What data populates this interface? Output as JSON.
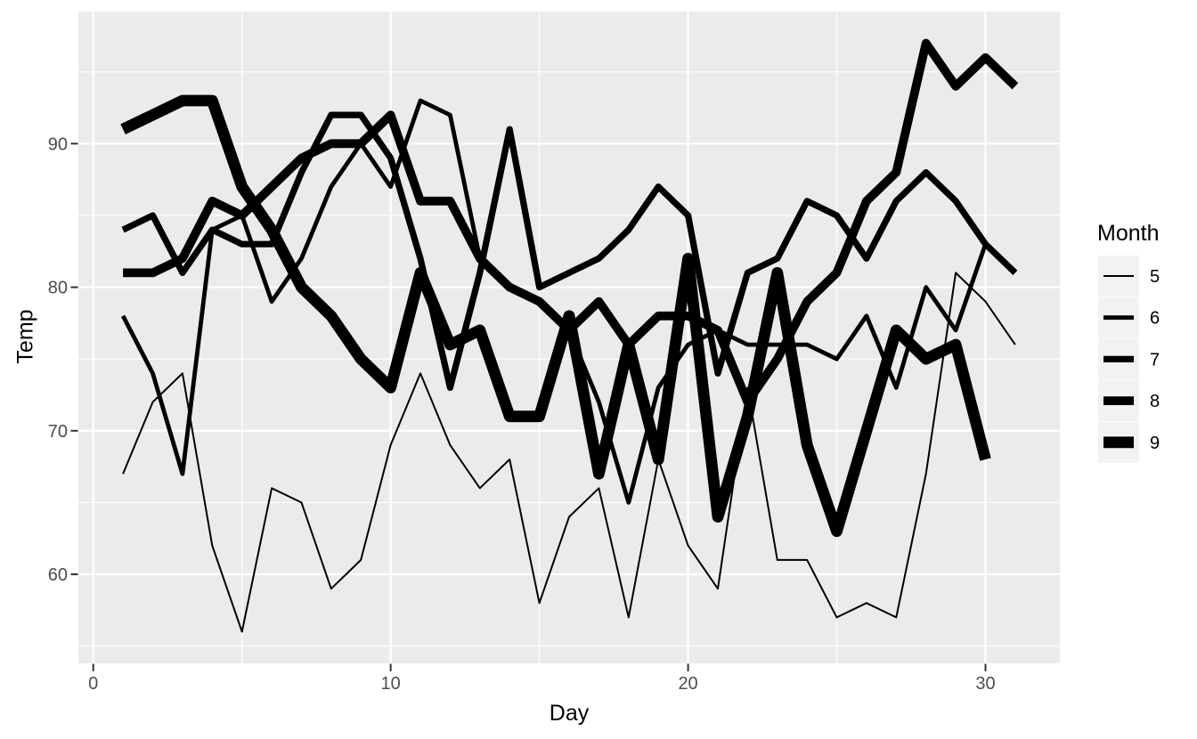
{
  "figure": {
    "background": "#FFFFFF",
    "panel_background": "#EBEBEB",
    "grid_major_color": "#FFFFFF",
    "grid_minor_color": "#FFFFFF",
    "series_line_color": "#000000",
    "tick_label_color": "#4D4D4D",
    "tick_mark_color": "#333333",
    "axis_title_color": "#000000",
    "legend_key_fill": "#F2F2F2",
    "legend_text_color": "#000000"
  },
  "chart_data": {
    "type": "line",
    "title": "",
    "xlabel": "Day",
    "ylabel": "Temp",
    "legend_title": "Month",
    "legend_position": "right",
    "grid": true,
    "x_description": "Day of month, consecutive integers starting at 1 for every series",
    "size_encoding": "line thickness increases with Month (5 thinnest to 9 thickest)",
    "xlim": [
      -0.5,
      32.5
    ],
    "ylim": [
      53.8,
      99.2
    ],
    "x_major_ticks": [
      0,
      10,
      20,
      30
    ],
    "x_minor_ticks": [
      5,
      15,
      25
    ],
    "y_major_ticks": [
      60,
      70,
      80,
      90
    ],
    "y_minor_ticks": [
      55,
      65,
      75,
      85,
      95
    ],
    "series": [
      {
        "name": "5",
        "line_width": 2,
        "values": [
          67,
          72,
          74,
          62,
          56,
          66,
          65,
          59,
          61,
          69,
          74,
          69,
          66,
          68,
          58,
          64,
          66,
          57,
          68,
          62,
          59,
          73,
          61,
          61,
          57,
          58,
          57,
          67,
          81,
          79,
          76
        ]
      },
      {
        "name": "6",
        "line_width": 4.8,
        "values": [
          78,
          74,
          67,
          84,
          85,
          79,
          82,
          87,
          90,
          87,
          93,
          92,
          82,
          80,
          79,
          77,
          72,
          65,
          73,
          76,
          77,
          76,
          76,
          76,
          75,
          78,
          73,
          80,
          77,
          83
        ]
      },
      {
        "name": "7",
        "line_width": 7.2,
        "values": [
          84,
          85,
          81,
          84,
          83,
          83,
          88,
          92,
          92,
          89,
          82,
          73,
          81,
          91,
          80,
          81,
          82,
          84,
          87,
          85,
          74,
          81,
          82,
          86,
          85,
          82,
          86,
          88,
          86,
          83,
          81
        ]
      },
      {
        "name": "8",
        "line_width": 9.8,
        "values": [
          81,
          81,
          82,
          86,
          85,
          87,
          89,
          90,
          90,
          92,
          86,
          86,
          82,
          80,
          79,
          77,
          79,
          76,
          78,
          78,
          77,
          72,
          75,
          79,
          81,
          86,
          88,
          97,
          94,
          96,
          94
        ]
      },
      {
        "name": "9",
        "line_width": 12.8,
        "values": [
          91,
          92,
          93,
          93,
          87,
          84,
          80,
          78,
          75,
          73,
          81,
          76,
          77,
          71,
          71,
          78,
          67,
          76,
          68,
          82,
          64,
          71,
          81,
          69,
          63,
          70,
          77,
          75,
          76,
          68
        ]
      }
    ]
  }
}
